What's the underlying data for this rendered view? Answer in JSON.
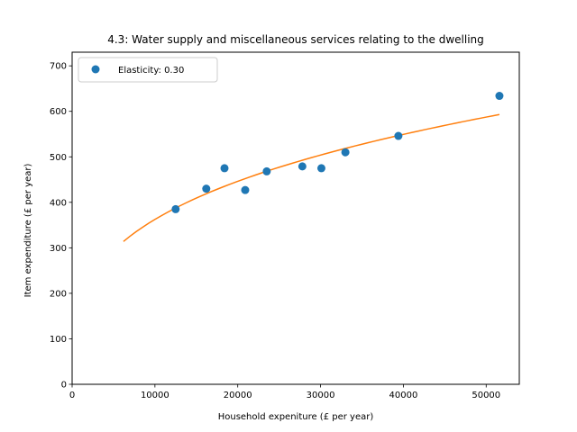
{
  "chart_data": {
    "type": "scatter",
    "title": "4.3: Water supply and miscellaneous services relating to the dwelling",
    "xlabel": "Household expeniture (£ per year)",
    "ylabel": "Item expenditure (£ per year)",
    "xlim": [
      0,
      54000
    ],
    "ylim": [
      0,
      730
    ],
    "xticks": [
      0,
      10000,
      20000,
      30000,
      40000,
      50000
    ],
    "yticks": [
      0,
      100,
      200,
      300,
      400,
      500,
      600,
      700
    ],
    "grid": false,
    "legend_position": "top-left",
    "series": [
      {
        "name": "Elasticity: 0.30",
        "kind": "scatter",
        "color": "#1f77b4",
        "x": [
          12500,
          16200,
          18400,
          20900,
          23500,
          27800,
          30100,
          33000,
          39400,
          51600
        ],
        "y": [
          385,
          430,
          475,
          427,
          468,
          479,
          475,
          510,
          546,
          634
        ]
      },
      {
        "kind": "line",
        "color": "#ff7f0e",
        "x": [
          6200,
          51600
        ],
        "y": [
          314,
          594
        ],
        "elasticity": 0.3
      }
    ]
  }
}
